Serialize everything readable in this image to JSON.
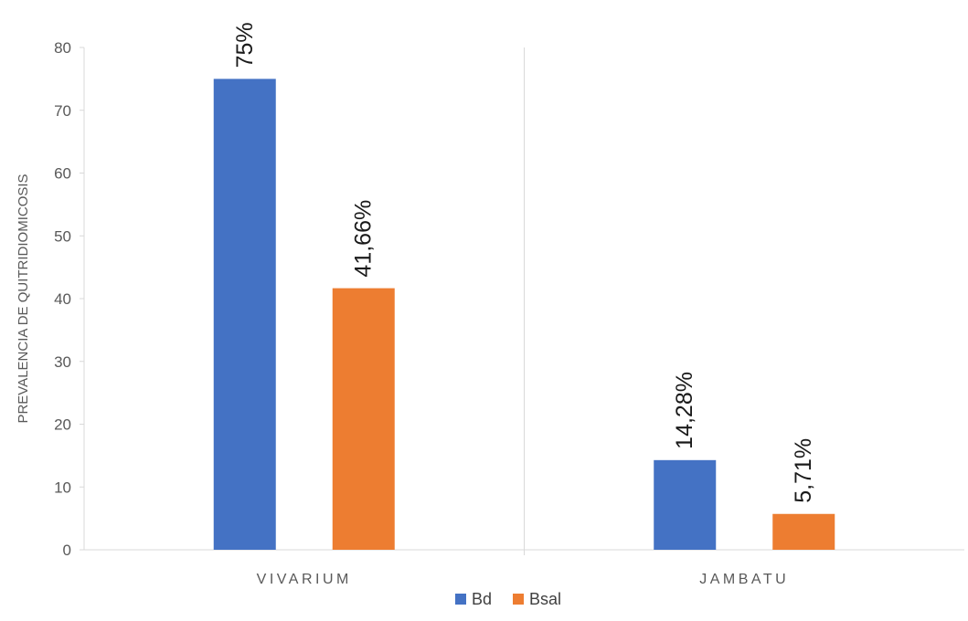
{
  "chart_data": {
    "type": "bar",
    "title": "",
    "xlabel": "",
    "ylabel": "PREVALENCIA DE QUITRIDIOMICOSIS",
    "categories": [
      "VIVARIUM",
      "JAMBATU"
    ],
    "series": [
      {
        "name": "Bd",
        "values": [
          75,
          14.28
        ],
        "labels": [
          "75%",
          "14,28%"
        ],
        "color": "#4472C4"
      },
      {
        "name": "Bsal",
        "values": [
          41.66,
          5.71
        ],
        "labels": [
          "41,66%",
          "5,71%"
        ],
        "color": "#ED7D31"
      }
    ],
    "ylim": [
      0,
      80
    ],
    "yticks": [
      0,
      10,
      20,
      30,
      40,
      50,
      60,
      70,
      80
    ],
    "grid": false,
    "legend_position": "bottom"
  }
}
